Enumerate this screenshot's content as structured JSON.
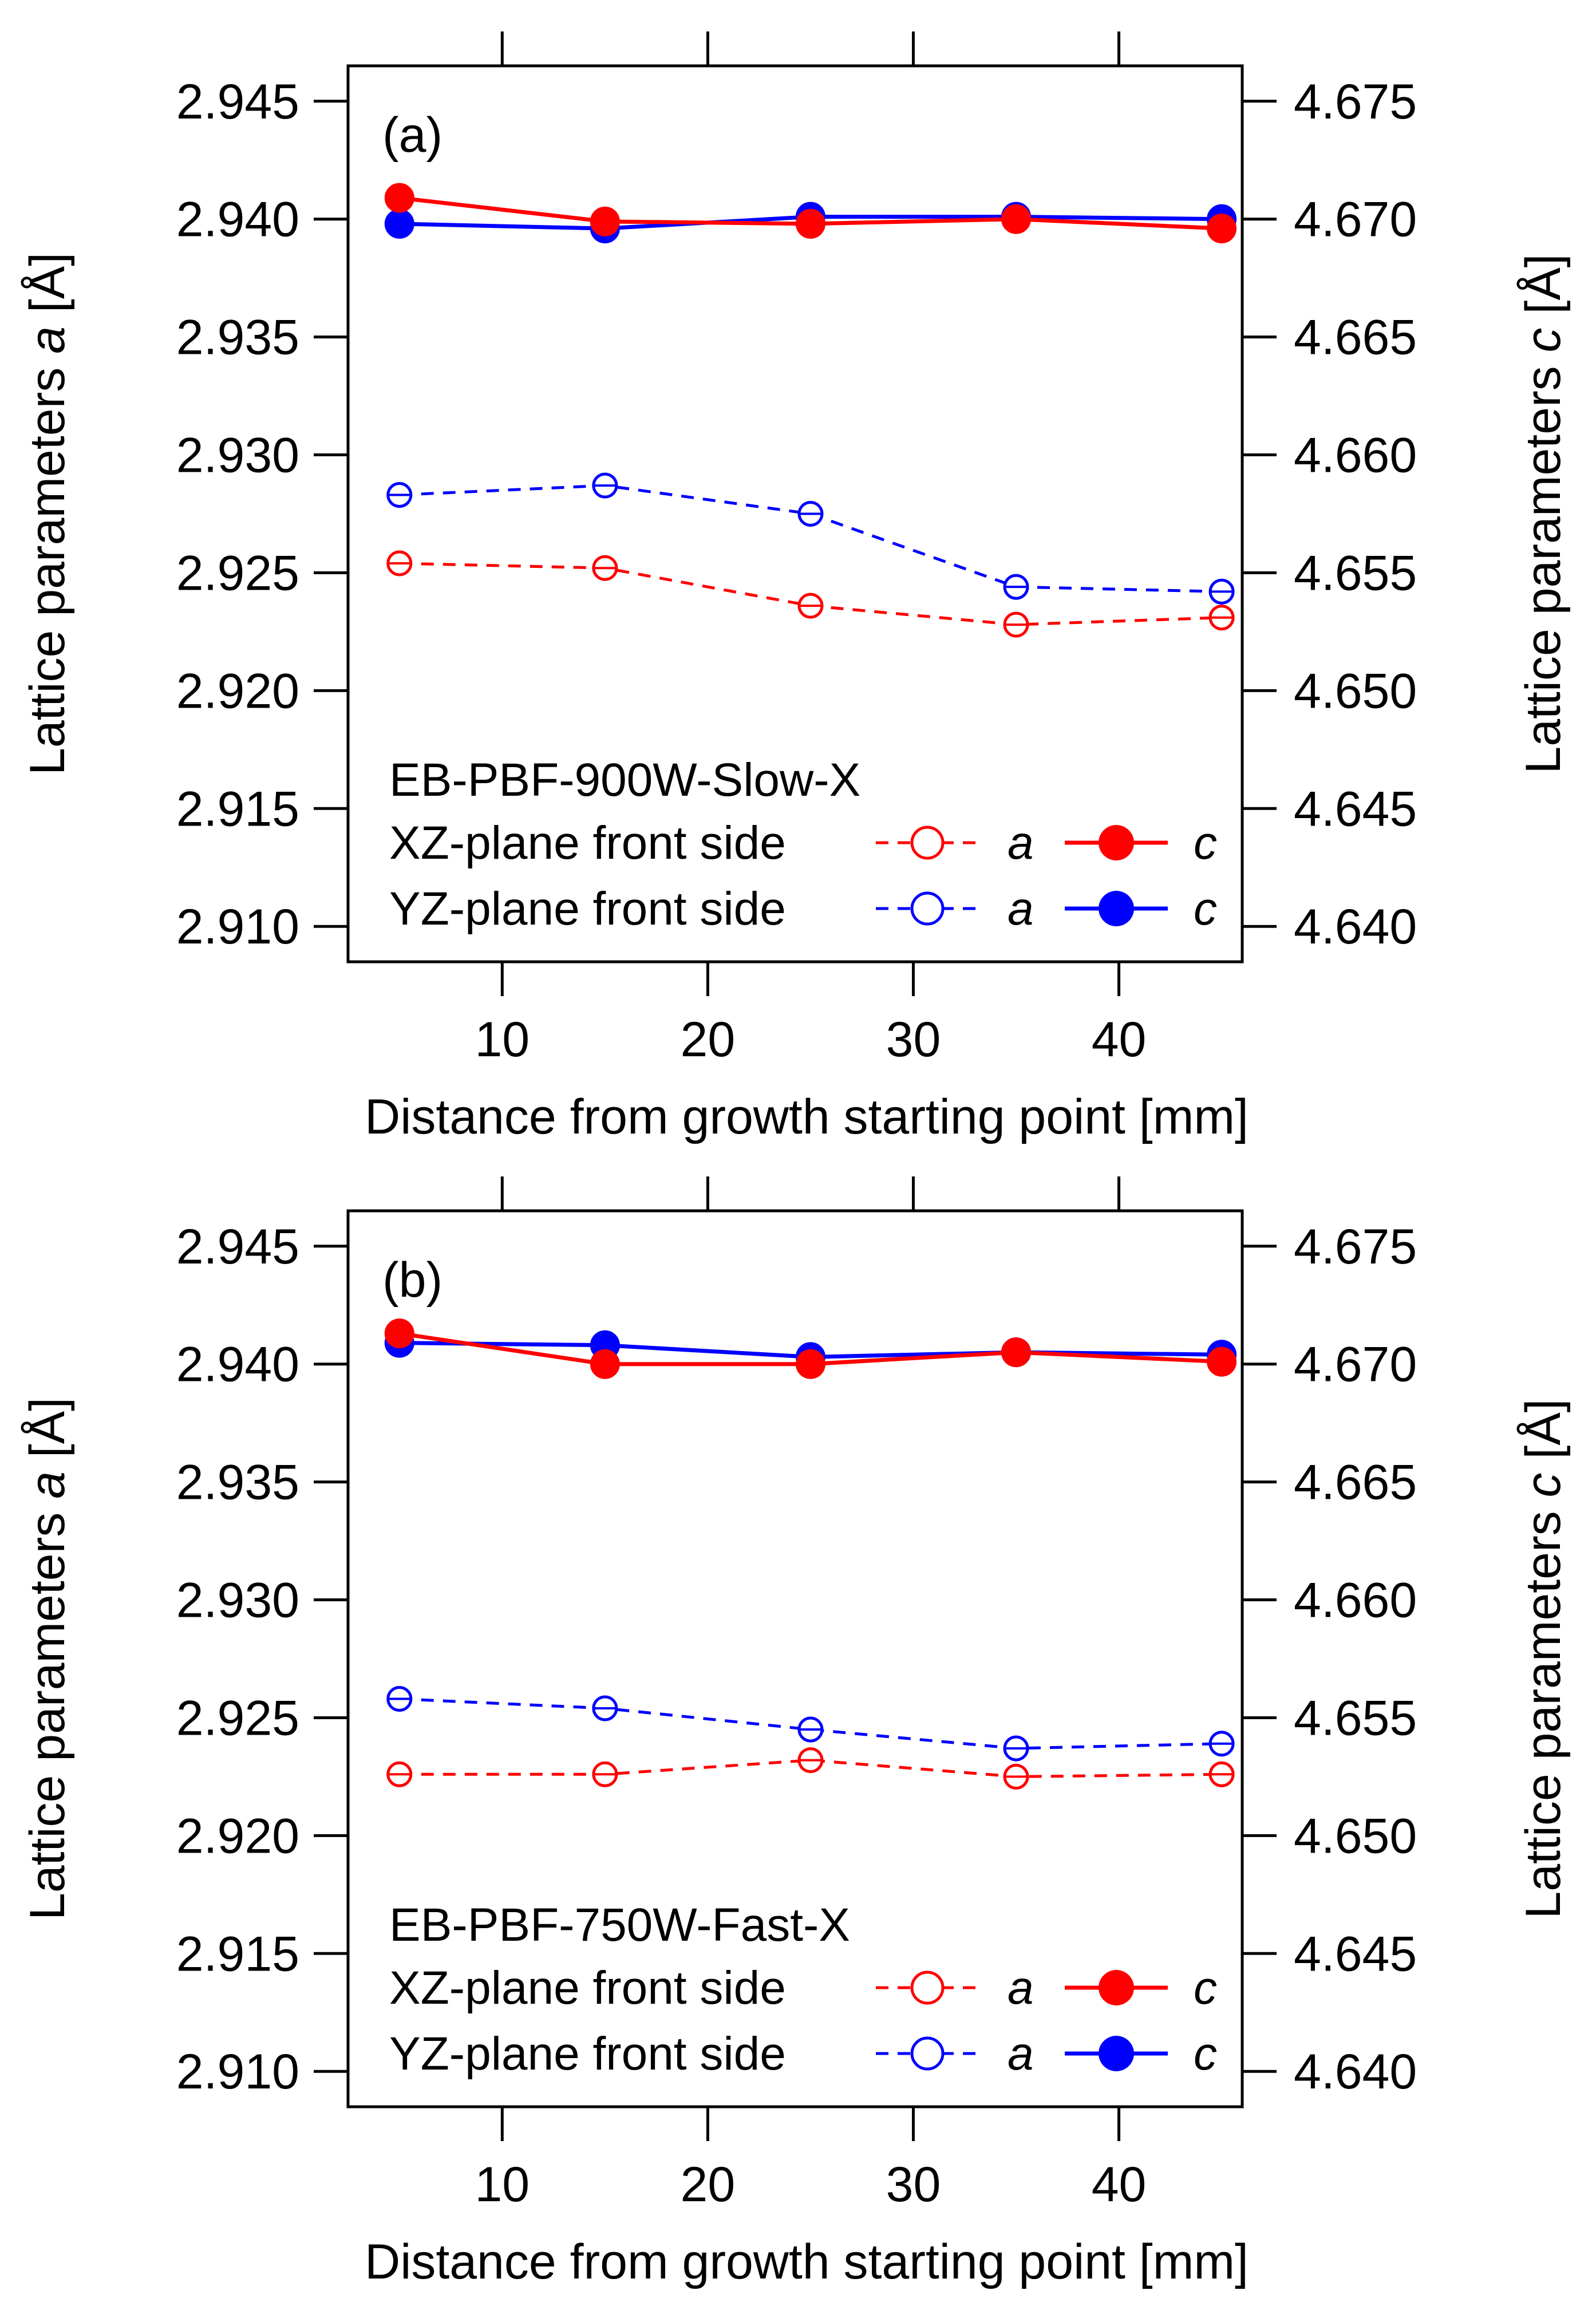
{
  "chart_data": [
    {
      "type": "line",
      "panel_label": "(a)",
      "xlabel": "Distance from growth starting point [mm]",
      "ylabel_left": {
        "pre": "Lattice parameters ",
        "var": "a",
        "post": " [Å]"
      },
      "ylabel_right": {
        "pre": "Lattice parameters ",
        "var": "c",
        "post": " [Å]"
      },
      "xlim": [
        2.5,
        46
      ],
      "ylim_left": [
        2.9085,
        2.9465
      ],
      "ylim_right": [
        4.6385,
        4.6765
      ],
      "x_ticks": [
        10,
        20,
        30,
        40
      ],
      "x_tick_labels": [
        "10",
        "20",
        "30",
        "40"
      ],
      "y_left_ticks": [
        2.91,
        2.915,
        2.92,
        2.925,
        2.93,
        2.935,
        2.94,
        2.945
      ],
      "y_left_tick_labels": [
        "2.910",
        "2.915",
        "2.920",
        "2.925",
        "2.930",
        "2.935",
        "2.940",
        "2.945"
      ],
      "y_right_ticks": [
        4.64,
        4.645,
        4.65,
        4.655,
        4.66,
        4.665,
        4.67,
        4.675
      ],
      "y_right_tick_labels": [
        "4.640",
        "4.645",
        "4.650",
        "4.655",
        "4.660",
        "4.665",
        "4.670",
        "4.675"
      ],
      "x": [
        5,
        15,
        25,
        35,
        45
      ],
      "series": [
        {
          "color": "#0000ff",
          "marker": "open",
          "dash": "dashed",
          "axis": "left",
          "values": [
            2.9283,
            2.9287,
            2.9275,
            2.9244,
            2.9242
          ]
        },
        {
          "color": "#ff0000",
          "marker": "open",
          "dash": "dashed",
          "axis": "left",
          "values": [
            2.9254,
            2.9252,
            2.9236,
            2.9228,
            2.9231
          ]
        },
        {
          "color": "#0000ff",
          "marker": "filled",
          "dash": "solid",
          "axis": "right",
          "values": [
            4.6698,
            4.6696,
            4.6701,
            4.6701,
            4.67
          ]
        },
        {
          "color": "#ff0000",
          "marker": "filled",
          "dash": "solid",
          "axis": "right",
          "values": [
            4.6709,
            4.6699,
            4.6698,
            4.67,
            4.6696
          ]
        }
      ],
      "legend": {
        "title": "EB-PBF-900W-Slow-X",
        "rows": [
          {
            "label": "XZ-plane front side",
            "color": "#ff0000",
            "a_label": "a",
            "c_label": "c"
          },
          {
            "label": "YZ-plane front side",
            "color": "#0000ff",
            "a_label": "a",
            "c_label": "c"
          }
        ]
      }
    },
    {
      "type": "line",
      "panel_label": "(b)",
      "xlabel": "Distance from growth starting point [mm]",
      "ylabel_left": {
        "pre": "Lattice parameters ",
        "var": "a",
        "post": " [Å]"
      },
      "ylabel_right": {
        "pre": "Lattice parameters ",
        "var": "c",
        "post": " [Å]"
      },
      "xlim": [
        2.5,
        46
      ],
      "ylim_left": [
        2.9085,
        2.9465
      ],
      "ylim_right": [
        4.6385,
        4.6765
      ],
      "x_ticks": [
        10,
        20,
        30,
        40
      ],
      "x_tick_labels": [
        "10",
        "20",
        "30",
        "40"
      ],
      "y_left_ticks": [
        2.91,
        2.915,
        2.92,
        2.925,
        2.93,
        2.935,
        2.94,
        2.945
      ],
      "y_left_tick_labels": [
        "2.910",
        "2.915",
        "2.920",
        "2.925",
        "2.930",
        "2.935",
        "2.940",
        "2.945"
      ],
      "y_right_ticks": [
        4.64,
        4.645,
        4.65,
        4.655,
        4.66,
        4.665,
        4.67,
        4.675
      ],
      "y_right_tick_labels": [
        "4.640",
        "4.645",
        "4.650",
        "4.655",
        "4.660",
        "4.665",
        "4.670",
        "4.675"
      ],
      "x": [
        5,
        15,
        25,
        35,
        45
      ],
      "series": [
        {
          "color": "#0000ff",
          "marker": "open",
          "dash": "dashed",
          "axis": "left",
          "values": [
            2.9258,
            2.9254,
            2.9245,
            2.9237,
            2.9239
          ]
        },
        {
          "color": "#ff0000",
          "marker": "open",
          "dash": "dashed",
          "axis": "left",
          "values": [
            2.9226,
            2.9226,
            2.9232,
            2.9225,
            2.9226
          ]
        },
        {
          "color": "#0000ff",
          "marker": "filled",
          "dash": "solid",
          "axis": "right",
          "values": [
            4.6709,
            4.6708,
            4.6703,
            4.6705,
            4.6704
          ]
        },
        {
          "color": "#ff0000",
          "marker": "filled",
          "dash": "solid",
          "axis": "right",
          "values": [
            4.6713,
            4.67,
            4.67,
            4.6705,
            4.6701
          ]
        }
      ],
      "legend": {
        "title": "EB-PBF-750W-Fast-X",
        "rows": [
          {
            "label": "XZ-plane front side",
            "color": "#ff0000",
            "a_label": "a",
            "c_label": "c"
          },
          {
            "label": "YZ-plane front side",
            "color": "#0000ff",
            "a_label": "a",
            "c_label": "c"
          }
        ]
      }
    }
  ]
}
